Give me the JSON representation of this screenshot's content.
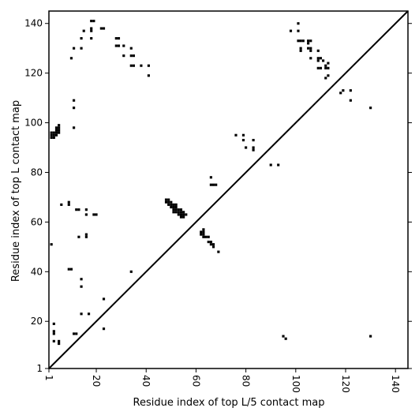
{
  "chart_data": {
    "type": "scatter",
    "xlabel": "Residue index of top L/5 contact map",
    "ylabel": "Residue index of top L contact map",
    "xlim": [
      1,
      145
    ],
    "ylim": [
      1,
      145
    ],
    "xticks": [
      1,
      20,
      40,
      60,
      80,
      100,
      120,
      140
    ],
    "yticks": [
      1,
      20,
      40,
      60,
      80,
      100,
      120,
      140
    ],
    "diagonal": true,
    "marker": "square",
    "series": [
      {
        "values": [
          [
            2,
            94
          ],
          [
            2,
            95
          ],
          [
            2,
            96
          ],
          [
            3,
            94
          ],
          [
            3,
            95
          ],
          [
            3,
            96
          ],
          [
            4,
            95
          ],
          [
            4,
            96
          ],
          [
            4,
            97
          ],
          [
            4,
            98
          ],
          [
            5,
            96
          ],
          [
            5,
            97
          ],
          [
            5,
            98
          ],
          [
            5,
            99
          ],
          [
            2,
            51
          ],
          [
            3,
            19
          ],
          [
            3,
            16
          ],
          [
            3,
            15
          ],
          [
            3,
            12
          ],
          [
            5,
            12
          ],
          [
            5,
            11
          ],
          [
            6,
            67
          ],
          [
            9,
            67
          ],
          [
            9,
            68
          ],
          [
            9,
            41
          ],
          [
            10,
            41
          ],
          [
            10,
            126
          ],
          [
            11,
            130
          ],
          [
            11,
            109
          ],
          [
            11,
            106
          ],
          [
            11,
            98
          ],
          [
            11,
            15
          ],
          [
            12,
            15
          ],
          [
            12,
            65
          ],
          [
            13,
            65
          ],
          [
            13,
            54
          ],
          [
            14,
            134
          ],
          [
            14,
            130
          ],
          [
            14,
            37
          ],
          [
            14,
            34
          ],
          [
            14,
            23
          ],
          [
            15,
            137
          ],
          [
            16,
            65
          ],
          [
            16,
            63
          ],
          [
            16,
            55
          ],
          [
            16,
            54
          ],
          [
            17,
            23
          ],
          [
            18,
            141
          ],
          [
            18,
            138
          ],
          [
            18,
            137
          ],
          [
            18,
            134
          ],
          [
            19,
            141
          ],
          [
            19,
            63
          ],
          [
            20,
            63
          ],
          [
            22,
            138
          ],
          [
            23,
            138
          ],
          [
            23,
            29
          ],
          [
            23,
            17
          ],
          [
            28,
            134
          ],
          [
            28,
            131
          ],
          [
            29,
            134
          ],
          [
            29,
            131
          ],
          [
            31,
            131
          ],
          [
            31,
            127
          ],
          [
            34,
            130
          ],
          [
            34,
            127
          ],
          [
            34,
            123
          ],
          [
            35,
            127
          ],
          [
            35,
            123
          ],
          [
            34,
            40
          ],
          [
            38,
            123
          ],
          [
            41,
            123
          ],
          [
            41,
            119
          ],
          [
            48,
            69
          ],
          [
            48,
            68
          ],
          [
            49,
            69
          ],
          [
            49,
            68
          ],
          [
            49,
            67
          ],
          [
            50,
            68
          ],
          [
            50,
            67
          ],
          [
            50,
            66
          ],
          [
            51,
            67
          ],
          [
            51,
            66
          ],
          [
            51,
            65
          ],
          [
            51,
            64
          ],
          [
            52,
            67
          ],
          [
            52,
            66
          ],
          [
            52,
            65
          ],
          [
            52,
            64
          ],
          [
            53,
            65
          ],
          [
            53,
            64
          ],
          [
            53,
            63
          ],
          [
            54,
            65
          ],
          [
            54,
            64
          ],
          [
            54,
            63
          ],
          [
            54,
            62
          ],
          [
            55,
            64
          ],
          [
            55,
            63
          ],
          [
            55,
            62
          ],
          [
            56,
            63
          ],
          [
            62,
            56
          ],
          [
            62,
            55
          ],
          [
            63,
            57
          ],
          [
            63,
            56
          ],
          [
            63,
            55
          ],
          [
            63,
            54
          ],
          [
            64,
            54
          ],
          [
            65,
            54
          ],
          [
            65,
            52
          ],
          [
            66,
            52
          ],
          [
            66,
            51
          ],
          [
            67,
            51
          ],
          [
            67,
            50
          ],
          [
            69,
            48
          ],
          [
            66,
            78
          ],
          [
            66,
            75
          ],
          [
            67,
            75
          ],
          [
            68,
            75
          ],
          [
            76,
            95
          ],
          [
            79,
            95
          ],
          [
            79,
            93
          ],
          [
            80,
            90
          ],
          [
            83,
            93
          ],
          [
            83,
            90
          ],
          [
            83,
            89
          ],
          [
            90,
            83
          ],
          [
            93,
            83
          ],
          [
            95,
            14
          ],
          [
            96,
            13
          ],
          [
            98,
            137
          ],
          [
            101,
            140
          ],
          [
            101,
            137
          ],
          [
            101,
            133
          ],
          [
            102,
            133
          ],
          [
            102,
            130
          ],
          [
            102,
            129
          ],
          [
            103,
            133
          ],
          [
            105,
            133
          ],
          [
            105,
            132
          ],
          [
            105,
            130
          ],
          [
            106,
            133
          ],
          [
            106,
            130
          ],
          [
            106,
            129
          ],
          [
            106,
            126
          ],
          [
            109,
            129
          ],
          [
            109,
            126
          ],
          [
            109,
            125
          ],
          [
            109,
            122
          ],
          [
            110,
            126
          ],
          [
            110,
            122
          ],
          [
            111,
            125
          ],
          [
            112,
            123
          ],
          [
            112,
            122
          ],
          [
            112,
            118
          ],
          [
            113,
            124
          ],
          [
            113,
            122
          ],
          [
            113,
            119
          ],
          [
            118,
            112
          ],
          [
            119,
            113
          ],
          [
            122,
            113
          ],
          [
            122,
            109
          ],
          [
            130,
            106
          ],
          [
            130,
            14
          ]
        ]
      }
    ]
  }
}
